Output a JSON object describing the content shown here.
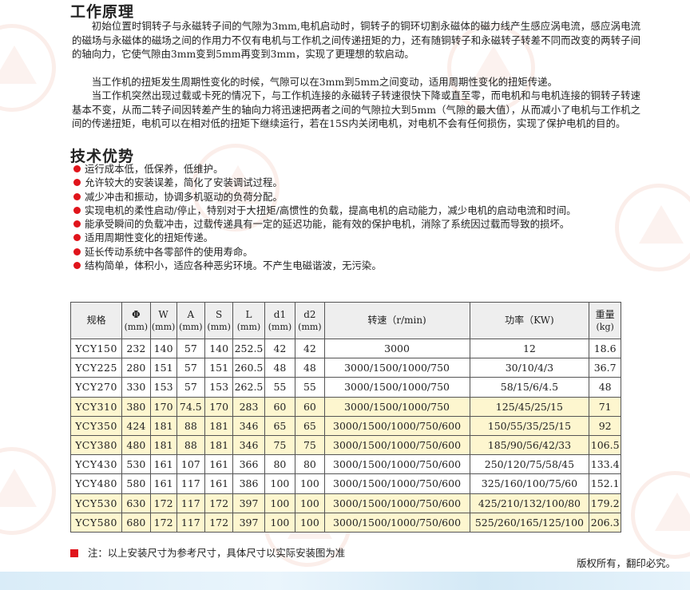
{
  "principle": {
    "title": "工作原理",
    "paragraphs": [
      "初始位置时铜转子与永磁转子间的气隙为3mm,电机启动时，铜转子的铜环切割永磁体的磁力线产生感应涡电流，感应涡电流的磁场与永磁体的磁场之间的作用力不仅有电机与工作机之间传递扭矩的力，还有随铜转子和永磁转子转差不同而改变的两转子间的轴向力，它使气隙由3mm变到5mm再变到3mm，实现了更理想的软启动。",
      "当工作机的扭矩发生周期性变化的时候，气隙可以在3mm到5mm之间变动，适用周期性变化的扭矩传递。",
      "当工作机突然出现过载或卡死的情况下，与工作机连接的永磁转子转速很快下降或直至零，而电机和与电机连接的铜转子转速基本不变，从而二转子间因转差产生的轴向力将迅速把两者之间的气隙拉大到5mm（气隙的最大值），从而减小了电机与工作机之间的传递扭矩，电机可以在相对低的扭矩下继续运行，若在15S内关闭电机，对电机不会有任何损伤，实现了保护电机的目的。"
    ]
  },
  "advantages": {
    "title": "技术优势",
    "items": [
      "运行成本低，低保养，低维护。",
      "允许较大的安装误差，简化了安装调试过程。",
      "减少冲击和振动，协调多机驱动的负荷分配。",
      "实现电机的柔性启动/停止，特别对于大扭矩/高惯性的负载，提高电机的启动能力，减少电机的启动电流和时间。",
      "能承受瞬间的负载冲击，过载传递具有一定的延迟功能，能有效的保护电机，消除了系统因过载而导致的损坏。",
      "适用周期性变化的扭矩传递。",
      "延长传动系统中各零部件的使用寿命。",
      "结构简单，体积小，适应各种恶劣环境。不产生电磁谐波，无污染。"
    ]
  },
  "table": {
    "headers": [
      {
        "name": "规格",
        "unit": ""
      },
      {
        "name": "Φ",
        "unit": "(mm)"
      },
      {
        "name": "W",
        "unit": "(mm)"
      },
      {
        "name": "A",
        "unit": "(mm)"
      },
      {
        "name": "S",
        "unit": "(mm)"
      },
      {
        "name": "L",
        "unit": "(mm)"
      },
      {
        "name": "d1",
        "unit": "(mm)"
      },
      {
        "name": "d2",
        "unit": "(mm)"
      },
      {
        "name": "转速（r/min)",
        "unit": ""
      },
      {
        "name": "功率（KW)",
        "unit": ""
      },
      {
        "name": "重量",
        "unit": "(kg)"
      }
    ],
    "rows": [
      [
        "YCY150",
        "232",
        "140",
        "57",
        "140",
        "252.5",
        "42",
        "42",
        "3000",
        "12",
        "18.6"
      ],
      [
        "YCY225",
        "280",
        "151",
        "57",
        "151",
        "260.5",
        "48",
        "48",
        "3000/1500/1000/750",
        "30/10/4/3",
        "36.7"
      ],
      [
        "YCY270",
        "330",
        "153",
        "57",
        "153",
        "262.5",
        "55",
        "55",
        "3000/1500/1000/750",
        "58/15/6/4.5",
        "48"
      ],
      [
        "YCY310",
        "380",
        "170",
        "74.5",
        "170",
        "283",
        "60",
        "60",
        "3000/1500/1000/750",
        "125/45/25/15",
        "71"
      ],
      [
        "YCY350",
        "424",
        "181",
        "88",
        "181",
        "346",
        "65",
        "65",
        "3000/1500/1000/750/600",
        "150/55/35/25/15",
        "92"
      ],
      [
        "YCY380",
        "480",
        "181",
        "88",
        "181",
        "346",
        "75",
        "75",
        "3000/1500/1000/750/600",
        "185/90/56/42/33",
        "106.5"
      ],
      [
        "YCY430",
        "530",
        "161",
        "107",
        "161",
        "366",
        "80",
        "80",
        "3000/1500/1000/750/600",
        "250/120/75/58/45",
        "133.4"
      ],
      [
        "YCY480",
        "580",
        "161",
        "117",
        "161",
        "386",
        "100",
        "100",
        "3000/1500/1000/750/600",
        "325/160/100/75/60",
        "152.1"
      ],
      [
        "YCY530",
        "630",
        "172",
        "117",
        "172",
        "397",
        "100",
        "100",
        "3000/1500/1000/750/600",
        "425/210/132/100/80",
        "179.2"
      ],
      [
        "YCY580",
        "680",
        "172",
        "117",
        "172",
        "397",
        "100",
        "100",
        "3000/1500/1000/750/600",
        "525/260/165/125/100",
        "206.3"
      ]
    ],
    "highlight_rows": [
      3,
      4,
      5,
      8,
      9
    ],
    "highlight_color": "#fdf6cf"
  },
  "note": "注：以上安装尺寸为参考尺寸，具体尺寸以实际安装图为准",
  "copyright": "版权所有，翻印必究。",
  "colors": {
    "bullet": "#e0141b"
  }
}
